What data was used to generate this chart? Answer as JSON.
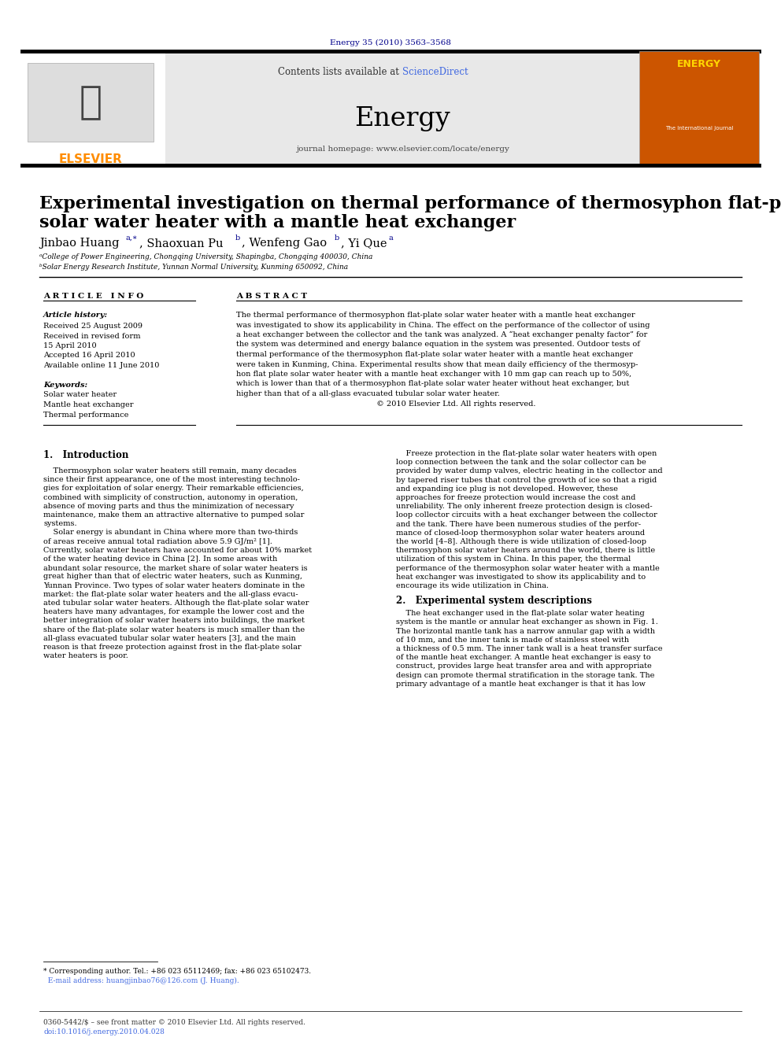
{
  "journal_ref": "Energy 35 (2010) 3563–3568",
  "journal_ref_color": "#00008B",
  "header_bg": "#E0E0E0",
  "sciencedirect_color": "#4169E1",
  "elsevier_orange": "#FF8C00",
  "title_line1": "Experimental investigation on thermal performance of thermosyphon flat-plate",
  "title_line2": "solar water heater with a mantle heat exchanger",
  "affil_a": "ᵃCollege of Power Engineering, Chongqing University, Shapingba, Chongqing 400030, China",
  "affil_b": "ᵇSolar Energy Research Institute, Yunnan Normal University, Kunming 650092, China",
  "article_info_header": "A R T I C L E   I N F O",
  "abstract_header": "A B S T R A C T",
  "article_history_label": "Article history:",
  "received": "Received 25 August 2009",
  "revised1": "Received in revised form",
  "revised2": "15 April 2010",
  "accepted": "Accepted 16 April 2010",
  "available": "Available online 11 June 2010",
  "keywords_label": "Keywords:",
  "keyword1": "Solar water heater",
  "keyword2": "Mantle heat exchanger",
  "keyword3": "Thermal performance",
  "abstract_lines": [
    "The thermal performance of thermosyphon flat-plate solar water heater with a mantle heat exchanger",
    "was investigated to show its applicability in China. The effect on the performance of the collector of using",
    "a heat exchanger between the collector and the tank was analyzed. A “heat exchanger penalty factor” for",
    "the system was determined and energy balance equation in the system was presented. Outdoor tests of",
    "thermal performance of the thermosyphon flat-plate solar water heater with a mantle heat exchanger",
    "were taken in Kunming, China. Experimental results show that mean daily efficiency of the thermosyp-",
    "hon flat plate solar water heater with a mantle heat exchanger with 10 mm gap can reach up to 50%,",
    "which is lower than that of a thermosyphon flat-plate solar water heater without heat exchanger, but",
    "higher than that of a all-glass evacuated tubular solar water heater.",
    "                                                         © 2010 Elsevier Ltd. All rights reserved."
  ],
  "section1_title": "1.   Introduction",
  "left_col_lines": [
    "    Thermosyphon solar water heaters still remain, many decades",
    "since their first appearance, one of the most interesting technolo-",
    "gies for exploitation of solar energy. Their remarkable efficiencies,",
    "combined with simplicity of construction, autonomy in operation,",
    "absence of moving parts and thus the minimization of necessary",
    "maintenance, make them an attractive alternative to pumped solar",
    "systems.",
    "    Solar energy is abundant in China where more than two-thirds",
    "of areas receive annual total radiation above 5.9 GJ/m² [1].",
    "Currently, solar water heaters have accounted for about 10% market",
    "of the water heating device in China [2]. In some areas with",
    "abundant solar resource, the market share of solar water heaters is",
    "great higher than that of electric water heaters, such as Kunming,",
    "Yunnan Province. Two types of solar water heaters dominate in the",
    "market: the flat-plate solar water heaters and the all-glass evacu-",
    "ated tubular solar water heaters. Although the flat-plate solar water",
    "heaters have many advantages, for example the lower cost and the",
    "better integration of solar water heaters into buildings, the market",
    "share of the flat-plate solar water heaters is much smaller than the",
    "all-glass evacuated tubular solar water heaters [3], and the main",
    "reason is that freeze protection against frost in the flat-plate solar",
    "water heaters is poor."
  ],
  "right_col_lines": [
    "    Freeze protection in the flat-plate solar water heaters with open",
    "loop connection between the tank and the solar collector can be",
    "provided by water dump valves, electric heating in the collector and",
    "by tapered riser tubes that control the growth of ice so that a rigid",
    "and expanding ice plug is not developed. However, these",
    "approaches for freeze protection would increase the cost and",
    "unreliability. The only inherent freeze protection design is closed-",
    "loop collector circuits with a heat exchanger between the collector",
    "and the tank. There have been numerous studies of the perfor-",
    "mance of closed-loop thermosyphon solar water heaters around",
    "the world [4–8]. Although there is wide utilization of closed-loop",
    "thermosyphon solar water heaters around the world, there is little",
    "utilization of this system in China. In this paper, the thermal",
    "performance of the thermosyphon solar water heater with a mantle",
    "heat exchanger was investigated to show its applicability and to",
    "encourage its wide utilization in China."
  ],
  "section2_title": "2.   Experimental system descriptions",
  "section2_lines": [
    "    The heat exchanger used in the flat-plate solar water heating",
    "system is the mantle or annular heat exchanger as shown in Fig. 1.",
    "The horizontal mantle tank has a narrow annular gap with a width",
    "of 10 mm, and the inner tank is made of stainless steel with",
    "a thickness of 0.5 mm. The inner tank wall is a heat transfer surface",
    "of the mantle heat exchanger. A mantle heat exchanger is easy to",
    "construct, provides large heat transfer area and with appropriate",
    "design can promote thermal stratification in the storage tank. The",
    "primary advantage of a mantle heat exchanger is that it has low"
  ],
  "footnote_line1": "* Corresponding author. Tel.: +86 023 65112469; fax: +86 023 65102473.",
  "footnote_line2": "  E-mail address: huangjinbao76@126.com (J. Huang).",
  "footer_line1": "0360-5442/$ – see front matter © 2010 Elsevier Ltd. All rights reserved.",
  "footer_line2": "doi:10.1016/j.energy.2010.04.028"
}
